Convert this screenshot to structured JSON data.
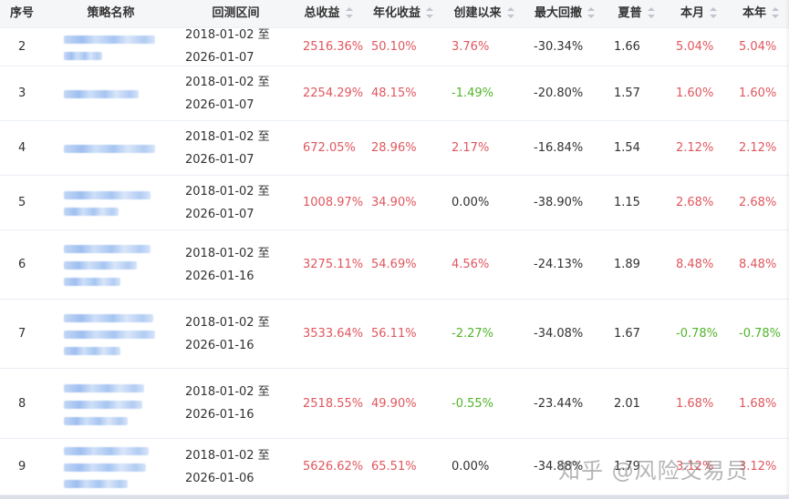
{
  "table": {
    "columns": [
      {
        "key": "idx",
        "label": "序号",
        "sortable": false
      },
      {
        "key": "name",
        "label": "策略名称",
        "sortable": false
      },
      {
        "key": "range",
        "label": "回测区间",
        "sortable": false
      },
      {
        "key": "total",
        "label": "总收益",
        "sortable": true
      },
      {
        "key": "annual",
        "label": "年化收益",
        "sortable": true
      },
      {
        "key": "since",
        "label": "创建以来",
        "sortable": true
      },
      {
        "key": "mdd",
        "label": "最大回撤",
        "sortable": true
      },
      {
        "key": "sharpe",
        "label": "夏普",
        "sortable": true
      },
      {
        "key": "month",
        "label": "本月",
        "sortable": true
      },
      {
        "key": "year",
        "label": "本年",
        "sortable": true
      }
    ],
    "rows": [
      {
        "idx": "2",
        "name_lines": 2,
        "range_start": "2018-01-02 至",
        "range_end": "2026-01-07",
        "total": "2516.36%",
        "annual": "50.10%",
        "since": "3.76%",
        "mdd": "-30.34%",
        "sharpe": "1.66",
        "month": "5.04%",
        "year": "5.04%"
      },
      {
        "idx": "3",
        "name_lines": 1,
        "range_start": "2018-01-02 至",
        "range_end": "2026-01-07",
        "total": "2254.29%",
        "annual": "48.15%",
        "since": "-1.49%",
        "mdd": "-20.80%",
        "sharpe": "1.57",
        "month": "1.60%",
        "year": "1.60%"
      },
      {
        "idx": "4",
        "name_lines": 1,
        "range_start": "2018-01-02 至",
        "range_end": "2026-01-07",
        "total": "672.05%",
        "annual": "28.96%",
        "since": "2.17%",
        "mdd": "-16.84%",
        "sharpe": "1.54",
        "month": "2.12%",
        "year": "2.12%"
      },
      {
        "idx": "5",
        "name_lines": 2,
        "range_start": "2018-01-02 至",
        "range_end": "2026-01-07",
        "total": "1008.97%",
        "annual": "34.90%",
        "since": "0.00%",
        "mdd": "-38.90%",
        "sharpe": "1.15",
        "month": "2.68%",
        "year": "2.68%"
      },
      {
        "idx": "6",
        "name_lines": 3,
        "range_start": "2018-01-02 至",
        "range_end": "2026-01-16",
        "total": "3275.11%",
        "annual": "54.69%",
        "since": "4.56%",
        "mdd": "-24.13%",
        "sharpe": "1.89",
        "month": "8.48%",
        "year": "8.48%"
      },
      {
        "idx": "7",
        "name_lines": 3,
        "range_start": "2018-01-02 至",
        "range_end": "2026-01-16",
        "total": "3533.64%",
        "annual": "56.11%",
        "since": "-2.27%",
        "mdd": "-34.08%",
        "sharpe": "1.67",
        "month": "-0.78%",
        "year": "-0.78%"
      },
      {
        "idx": "8",
        "name_lines": 3,
        "range_start": "2018-01-02 至",
        "range_end": "2026-01-16",
        "total": "2518.55%",
        "annual": "49.90%",
        "since": "-0.55%",
        "mdd": "-23.44%",
        "sharpe": "2.01",
        "month": "1.68%",
        "year": "1.68%"
      },
      {
        "idx": "9",
        "name_lines": 3,
        "range_start": "2018-01-02 至",
        "range_end": "2026-01-06",
        "total": "5626.62%",
        "annual": "65.51%",
        "since": "0.00%",
        "mdd": "-34.88%",
        "sharpe": "1.79",
        "month": "3.12%",
        "year": "3.12%"
      }
    ]
  },
  "colors": {
    "positive": "#e0575e",
    "negative": "#52b52a",
    "neutral": "#303133",
    "header_bg": "#f5f6f8",
    "border": "#ebeef5"
  },
  "watermark": "知乎 @风险交易员"
}
